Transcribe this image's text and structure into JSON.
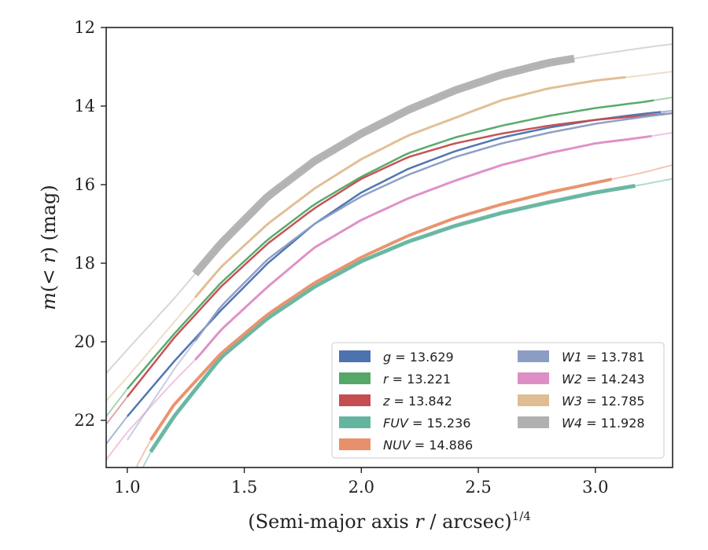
{
  "chart_data": {
    "type": "line",
    "title": "",
    "xlabel": "(Semi-major axis r / arcsec)",
    "xlabel_var": "r",
    "xlabel_prefix": "(Semi-major axis ",
    "xlabel_suffix": " / arcsec)",
    "xlabel_exponent": "1/4",
    "ylabel_prefix": "m(",
    "ylabel_middle": "< r",
    "ylabel_suffix": ") (mag)",
    "xlim": [
      0.91,
      3.33
    ],
    "ylim": [
      23.2,
      12.0
    ],
    "y_inverted": true,
    "x_ticks": [
      1.0,
      1.5,
      2.0,
      2.5,
      3.0
    ],
    "x_tick_labels": [
      "1.0",
      "1.5",
      "2.0",
      "2.5",
      "3.0"
    ],
    "y_ticks": [
      12,
      14,
      16,
      18,
      20,
      22
    ],
    "y_tick_labels": [
      "12",
      "14",
      "16",
      "18",
      "20",
      "22"
    ],
    "grid": false,
    "legend_position": "lower-right",
    "series": [
      {
        "name": "g",
        "value": "13.629",
        "color": "#4c72b0",
        "x": [
          0.91,
          1.0,
          1.2,
          1.4,
          1.6,
          1.8,
          2.0,
          2.2,
          2.4,
          2.6,
          2.8,
          3.0,
          3.2,
          3.33
        ],
        "y": [
          22.6,
          21.9,
          20.5,
          19.2,
          18.0,
          17.0,
          16.2,
          15.6,
          15.15,
          14.8,
          14.55,
          14.35,
          14.2,
          14.12
        ],
        "band_x": [
          1.0,
          3.28
        ],
        "width": 2.5
      },
      {
        "name": "r",
        "value": "13.221",
        "color": "#55a868",
        "x": [
          0.91,
          1.0,
          1.2,
          1.4,
          1.6,
          1.8,
          2.0,
          2.2,
          2.4,
          2.6,
          2.8,
          3.0,
          3.2,
          3.33
        ],
        "y": [
          21.9,
          21.2,
          19.8,
          18.5,
          17.4,
          16.5,
          15.8,
          15.2,
          14.8,
          14.5,
          14.25,
          14.05,
          13.9,
          13.78
        ],
        "band_x": [
          1.0,
          3.25
        ],
        "width": 2.5
      },
      {
        "name": "z",
        "value": "13.842",
        "color": "#c44e52",
        "x": [
          0.91,
          1.0,
          1.2,
          1.4,
          1.6,
          1.8,
          2.0,
          2.2,
          2.4,
          2.6,
          2.8,
          3.0,
          3.2,
          3.33
        ],
        "y": [
          22.1,
          21.4,
          19.9,
          18.6,
          17.5,
          16.6,
          15.85,
          15.3,
          14.95,
          14.7,
          14.5,
          14.35,
          14.25,
          14.18
        ],
        "band_x": [
          1.0,
          3.3
        ],
        "width": 2.5
      },
      {
        "name": "FUV",
        "value": "15.236",
        "color": "#64b5a0",
        "x": [
          1.05,
          1.1,
          1.2,
          1.4,
          1.6,
          1.8,
          2.0,
          2.2,
          2.4,
          2.6,
          2.8,
          3.0,
          3.2,
          3.33
        ],
        "y": [
          23.4,
          22.8,
          21.9,
          20.4,
          19.4,
          18.6,
          17.95,
          17.45,
          17.05,
          16.72,
          16.45,
          16.2,
          16.0,
          15.85
        ],
        "band_x": [
          1.1,
          3.17
        ],
        "width": 5
      },
      {
        "name": "NUV",
        "value": "14.886",
        "color": "#e8906c",
        "x": [
          1.02,
          1.1,
          1.2,
          1.4,
          1.6,
          1.8,
          2.0,
          2.2,
          2.4,
          2.6,
          2.8,
          3.0,
          3.2,
          3.33
        ],
        "y": [
          23.4,
          22.5,
          21.6,
          20.3,
          19.3,
          18.5,
          17.85,
          17.3,
          16.85,
          16.5,
          16.2,
          15.95,
          15.7,
          15.5
        ],
        "band_x": [
          1.1,
          3.07
        ],
        "width": 4
      },
      {
        "name": "W1",
        "value": "13.781",
        "color": "#8c9dc4",
        "x": [
          1.0,
          1.2,
          1.3,
          1.4,
          1.6,
          1.8,
          2.0,
          2.2,
          2.4,
          2.6,
          2.8,
          3.0,
          3.2,
          3.33
        ],
        "y": [
          22.5,
          20.7,
          19.9,
          19.1,
          17.9,
          17.0,
          16.3,
          15.75,
          15.3,
          14.95,
          14.68,
          14.45,
          14.28,
          14.18
        ],
        "band_x": [
          1.29,
          3.33
        ],
        "width": 2.5
      },
      {
        "name": "W2",
        "value": "14.243",
        "color": "#dd8ec5",
        "x": [
          0.91,
          1.0,
          1.2,
          1.3,
          1.4,
          1.6,
          1.8,
          2.0,
          2.2,
          2.4,
          2.6,
          2.8,
          3.0,
          3.2,
          3.33
        ],
        "y": [
          23.0,
          22.3,
          21.0,
          20.4,
          19.7,
          18.6,
          17.6,
          16.9,
          16.35,
          15.9,
          15.5,
          15.2,
          14.95,
          14.8,
          14.68
        ],
        "band_x": [
          1.29,
          3.24
        ],
        "width": 3
      },
      {
        "name": "W3",
        "value": "12.785",
        "color": "#dfbd92",
        "x": [
          0.91,
          1.0,
          1.2,
          1.3,
          1.4,
          1.6,
          1.8,
          2.0,
          2.2,
          2.4,
          2.6,
          2.8,
          3.0,
          3.2,
          3.33
        ],
        "y": [
          21.5,
          20.9,
          19.5,
          18.8,
          18.1,
          17.0,
          16.1,
          15.35,
          14.75,
          14.3,
          13.85,
          13.55,
          13.35,
          13.22,
          13.12
        ],
        "band_x": [
          1.29,
          3.13
        ],
        "width": 3
      },
      {
        "name": "W4",
        "value": "11.928",
        "color": "#b0b0b0",
        "x": [
          0.91,
          1.0,
          1.2,
          1.3,
          1.4,
          1.6,
          1.8,
          2.0,
          2.2,
          2.4,
          2.6,
          2.8,
          3.0,
          3.2,
          3.33
        ],
        "y": [
          20.8,
          20.2,
          18.9,
          18.2,
          17.5,
          16.3,
          15.4,
          14.7,
          14.1,
          13.6,
          13.2,
          12.9,
          12.7,
          12.52,
          12.42
        ],
        "band_x": [
          1.29,
          2.91
        ],
        "width": 10
      }
    ]
  }
}
